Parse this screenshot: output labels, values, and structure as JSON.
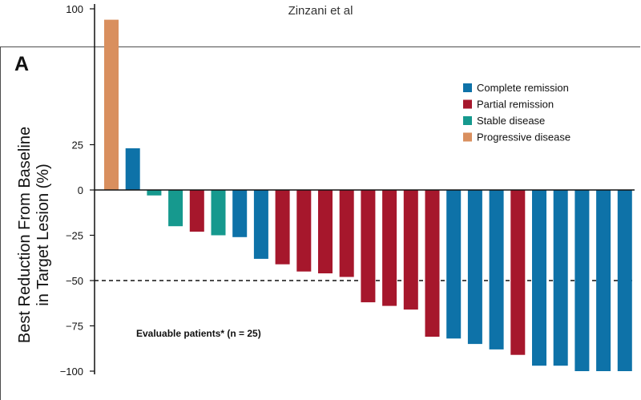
{
  "page": {
    "header": "Zinzani et al",
    "panel_label": "A"
  },
  "chart_data": {
    "type": "bar",
    "ylabel_line1": "Best Reduction From Baseline",
    "ylabel_line2": "in Target Lesion (%)",
    "ylim": [
      -100,
      100
    ],
    "yticks": [
      100,
      25,
      0,
      -25,
      -50,
      -75,
      -100
    ],
    "reference_line": -50,
    "annotation": "Evaluable patients* (n = 25)",
    "legend_position": "top-right",
    "legend": [
      {
        "key": "CR",
        "label": "Complete remission",
        "color": "#0e72a8"
      },
      {
        "key": "PR",
        "label": "Partial remission",
        "color": "#a6172c"
      },
      {
        "key": "SD",
        "label": "Stable disease",
        "color": "#16998e"
      },
      {
        "key": "PD",
        "label": "Progressive disease",
        "color": "#d98f5e"
      }
    ],
    "values": [
      94,
      23,
      -3,
      -20,
      -23,
      -25,
      -26,
      -38,
      -41,
      -45,
      -46,
      -48,
      -62,
      -64,
      -66,
      -81,
      -82,
      -85,
      -88,
      -91,
      -97,
      -97,
      -100,
      -100,
      -100
    ],
    "categories": [
      "PD",
      "CR",
      "SD",
      "SD",
      "PR",
      "SD",
      "CR",
      "CR",
      "PR",
      "PR",
      "PR",
      "PR",
      "PR",
      "PR",
      "PR",
      "PR",
      "CR",
      "CR",
      "CR",
      "PR",
      "CR",
      "CR",
      "CR",
      "CR",
      "CR"
    ]
  }
}
